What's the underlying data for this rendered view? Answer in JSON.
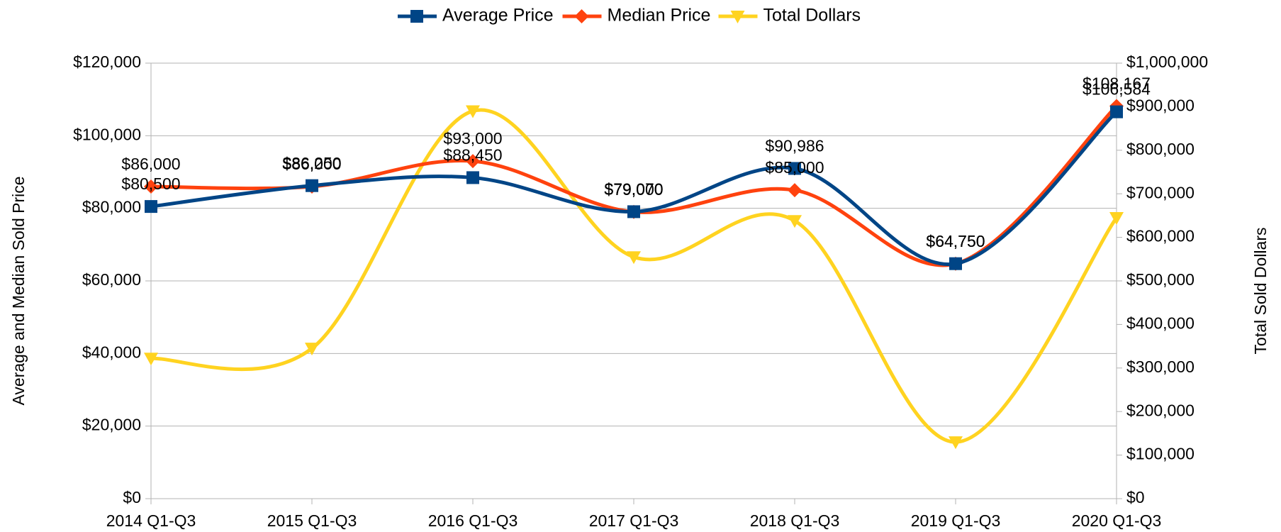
{
  "chart_data": {
    "type": "line",
    "categories": [
      "2014 Q1-Q3",
      "2015 Q1-Q3",
      "2016 Q1-Q3",
      "2017 Q1-Q3",
      "2018 Q1-Q3",
      "2019 Q1-Q3",
      "2020 Q1-Q3"
    ],
    "series": [
      {
        "name": "Average Price",
        "color": "#004586",
        "marker": "square",
        "axis": "y",
        "values": [
          80500,
          86250,
          88450,
          79070,
          90986,
          64750,
          106584
        ],
        "value_labels": [
          "$80,500",
          "$86,250",
          "$88,450",
          "$79,070",
          "$90,986",
          "$64,750",
          "$106,584"
        ]
      },
      {
        "name": "Median Price",
        "color": "#ff420e",
        "marker": "diamond",
        "axis": "y",
        "values": [
          86000,
          86000,
          93000,
          79000,
          85000,
          64750,
          108167
        ],
        "value_labels": [
          "$86,000",
          "$86,000",
          "$93,000",
          "$79,000",
          "$85,000",
          "$64,750",
          "$108,167"
        ]
      },
      {
        "name": "Total Dollars",
        "color": "#ffd320",
        "marker": "triangle-down",
        "axis": "y2",
        "values": [
          322000,
          345000,
          890000,
          555000,
          638000,
          130000,
          645000
        ]
      }
    ],
    "ylabel": "Average and Median Sold Price",
    "y2label": "Total  Sold Dollars",
    "ylim": [
      0,
      120000
    ],
    "yticks": [
      {
        "value": 0,
        "label": "$0"
      },
      {
        "value": 20000,
        "label": "$20,000"
      },
      {
        "value": 40000,
        "label": "$40,000"
      },
      {
        "value": 60000,
        "label": "$60,000"
      },
      {
        "value": 80000,
        "label": "$80,000"
      },
      {
        "value": 100000,
        "label": "$100,000"
      },
      {
        "value": 120000,
        "label": "$120,000"
      }
    ],
    "y2lim": [
      0,
      1000000
    ],
    "y2ticks": [
      {
        "value": 0,
        "label": "$0"
      },
      {
        "value": 100000,
        "label": "$100,000"
      },
      {
        "value": 200000,
        "label": "$200,000"
      },
      {
        "value": 300000,
        "label": "$300,000"
      },
      {
        "value": 400000,
        "label": "$400,000"
      },
      {
        "value": 500000,
        "label": "$500,000"
      },
      {
        "value": 600000,
        "label": "$600,000"
      },
      {
        "value": 700000,
        "label": "$700,000"
      },
      {
        "value": 800000,
        "label": "$800,000"
      },
      {
        "value": 900000,
        "label": "$900,000"
      },
      {
        "value": 1000000,
        "label": "$1,000,000"
      }
    ],
    "grid": true,
    "smooth": true,
    "legend": "top"
  }
}
